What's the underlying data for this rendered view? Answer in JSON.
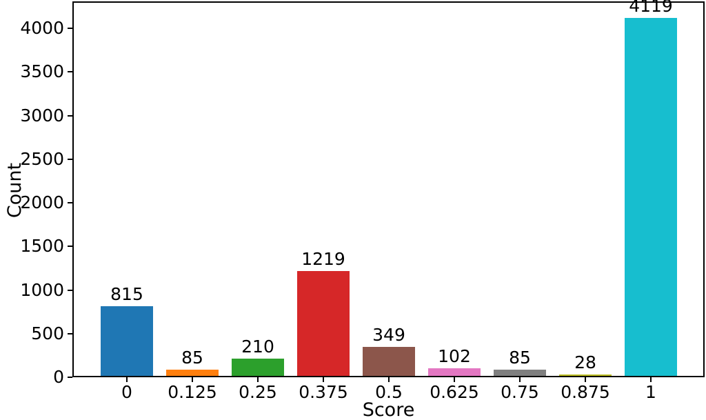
{
  "chart_data": {
    "type": "bar",
    "title": "",
    "xlabel": "Score",
    "ylabel": "Count",
    "categories": [
      "0",
      "0.125",
      "0.25",
      "0.375",
      "0.5",
      "0.625",
      "0.75",
      "0.875",
      "1"
    ],
    "values": [
      815,
      85,
      210,
      1219,
      349,
      102,
      85,
      28,
      4119
    ],
    "bar_labels": [
      "815",
      "85",
      "210",
      "1219",
      "349",
      "102",
      "85",
      "28",
      "4119"
    ],
    "colors": [
      "#1f77b4",
      "#ff7f0e",
      "#2ca02c",
      "#d62728",
      "#8c564b",
      "#e377c2",
      "#7f7f7f",
      "#bcbd22",
      "#17becf"
    ],
    "yticks": [
      0,
      500,
      1000,
      1500,
      2000,
      2500,
      3000,
      3500,
      4000
    ],
    "ylim": [
      0,
      4310
    ],
    "grid": false,
    "legend": null,
    "axis_color": "#000000"
  }
}
